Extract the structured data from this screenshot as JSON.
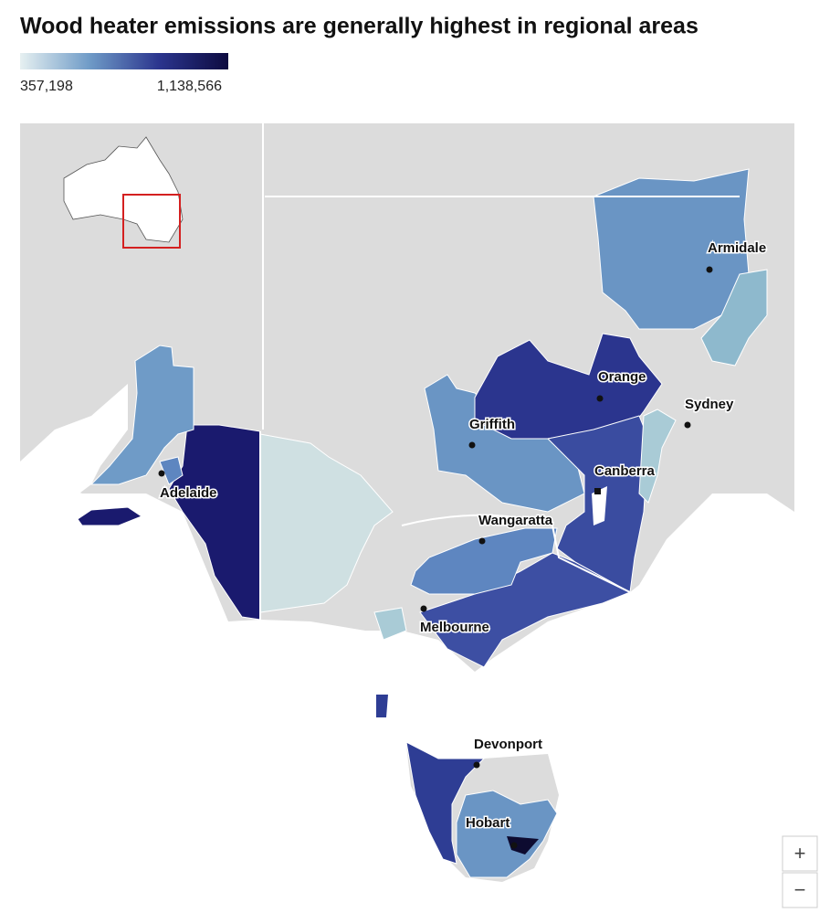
{
  "header": {
    "title": "Wood heater emissions are generally highest in regional areas"
  },
  "legend": {
    "min": {
      "value": 357198,
      "label": "357,198"
    },
    "max": {
      "value": 1138566,
      "label": "1,138,566"
    },
    "colors": [
      "#e6f0f1",
      "#6f9bc7",
      "#2b358e",
      "#0d0b40"
    ]
  },
  "cities": [
    "Armidale",
    "Orange",
    "Sydney",
    "Griffith",
    "Canberra",
    "Adelaide",
    "Wangaratta",
    "Melbourne",
    "Devonport",
    "Hobart"
  ],
  "controls": {
    "zoom_in": "+",
    "zoom_out": "−"
  }
}
